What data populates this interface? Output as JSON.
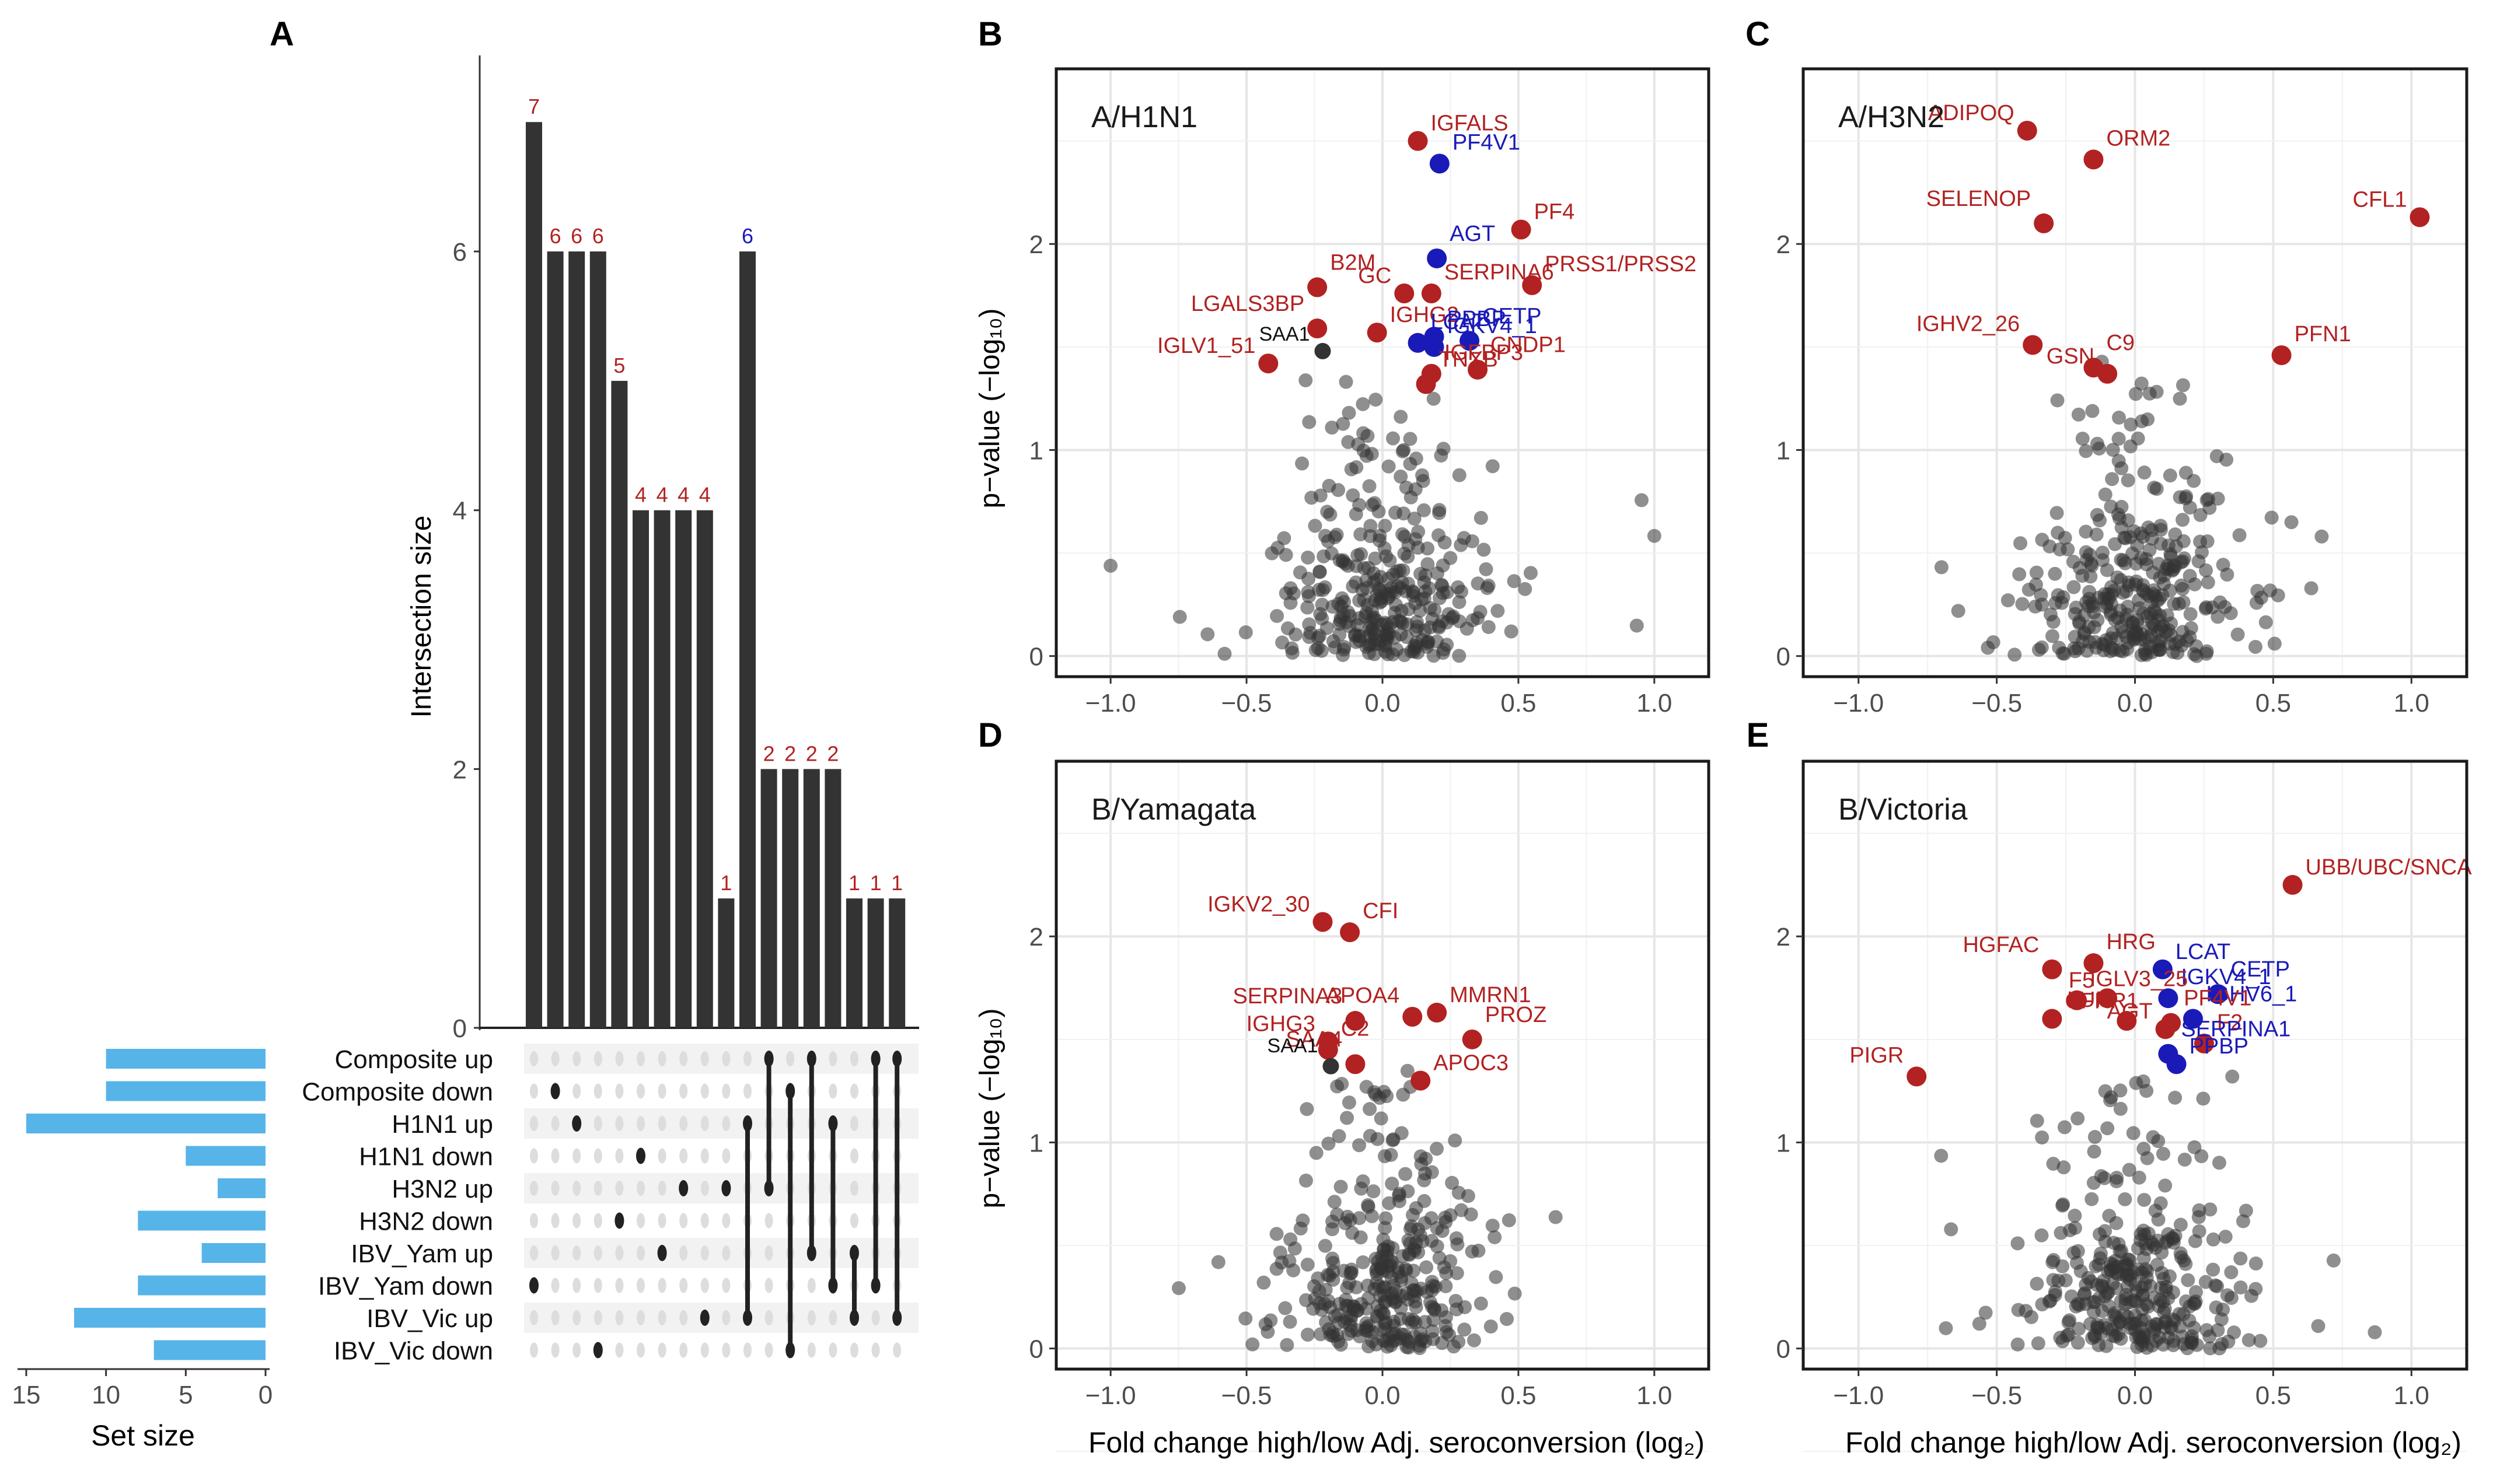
{
  "colors": {
    "bar": "#333333",
    "set_bar": "#56b4e9",
    "up": "#b22222",
    "down": "#1a1ab8",
    "grey": "#333333",
    "grid": "#e6e6e6",
    "panel_border": "#1a1a1a",
    "matrix_bg": "#f2f2f2",
    "dot_off": "#dddddd",
    "dot_on": "#222222"
  },
  "chart_data": [
    {
      "panel": "A",
      "type": "bar",
      "title": "",
      "ylabel": "Intersection size",
      "ylim": [
        0,
        7.5
      ],
      "yticks": [
        0,
        2,
        4,
        6
      ],
      "values": [
        7,
        6,
        6,
        6,
        5,
        4,
        4,
        4,
        4,
        1,
        6,
        2,
        2,
        2,
        2,
        1,
        1,
        1
      ],
      "label_colors": [
        "up",
        "up",
        "up",
        "up",
        "up",
        "up",
        "up",
        "up",
        "up",
        "up",
        "down",
        "up",
        "up",
        "up",
        "up",
        "up",
        "up",
        "up"
      ],
      "sets": [
        "Composite up",
        "Composite down",
        "H1N1 up",
        "H1N1 down",
        "H3N2 up",
        "H3N2 down",
        "IBV_Yam up",
        "IBV_Yam down",
        "IBV_Vic up",
        "IBV_Vic down"
      ],
      "set_sizes": [
        10,
        10,
        15,
        5,
        3,
        8,
        4,
        8,
        12,
        7
      ],
      "set_size_label": "Set size",
      "set_size_ticks": [
        15,
        10,
        5,
        0
      ],
      "memberships": [
        [
          7
        ],
        [
          1
        ],
        [
          2
        ],
        [
          9
        ],
        [
          5
        ],
        [
          3
        ],
        [
          6
        ],
        [
          4
        ],
        [
          8
        ],
        [
          4
        ],
        [
          2,
          8
        ],
        [
          0,
          4
        ],
        [
          1,
          9
        ],
        [
          0,
          6
        ],
        [
          2,
          7
        ],
        [
          6,
          8
        ],
        [
          0,
          7
        ],
        [
          0,
          8
        ]
      ]
    },
    {
      "panel": "B",
      "type": "scatter",
      "title": "A/H1N1",
      "xlabel": "Fold change high/low Adj. seroconversion (log₂)",
      "ylabel": "p−value (−log₁₀)",
      "xlim": [
        -1.2,
        1.2
      ],
      "ylim": [
        -0.1,
        2.85
      ],
      "xticks": [
        -1.0,
        -0.5,
        0.0,
        0.5,
        1.0
      ],
      "yticks": [
        0,
        1,
        2
      ],
      "labeled": [
        {
          "label": "IGFALS",
          "x": 0.13,
          "y": 2.5,
          "dir": "up"
        },
        {
          "label": "PF4V1",
          "x": 0.21,
          "y": 2.39,
          "dir": "down"
        },
        {
          "label": "AGT",
          "x": 0.2,
          "y": 1.93,
          "dir": "down"
        },
        {
          "label": "PF4",
          "x": 0.51,
          "y": 2.07,
          "dir": "up"
        },
        {
          "label": "PRSS1/PRSS2",
          "x": 0.55,
          "y": 1.8,
          "dir": "up"
        },
        {
          "label": "B2M",
          "x": -0.24,
          "y": 1.79,
          "dir": "up"
        },
        {
          "label": "GC",
          "x": 0.08,
          "y": 1.76,
          "dir": "up"
        },
        {
          "label": "SERPINA6",
          "x": 0.18,
          "y": 1.76,
          "dir": "up"
        },
        {
          "label": "LGALS3BP",
          "x": -0.24,
          "y": 1.59,
          "dir": "up"
        },
        {
          "label": "IGHG2",
          "x": -0.02,
          "y": 1.57,
          "dir": "up"
        },
        {
          "label": "LCAT",
          "x": 0.13,
          "y": 1.52,
          "dir": "down"
        },
        {
          "label": "CETP",
          "x": 0.32,
          "y": 1.53,
          "dir": "down"
        },
        {
          "label": "IGLV1_51",
          "x": -0.42,
          "y": 1.42,
          "dir": "up"
        },
        {
          "label": "IGKV4_1",
          "x": 0.19,
          "y": 1.5,
          "dir": "down"
        },
        {
          "label": "CNDP1",
          "x": 0.35,
          "y": 1.39,
          "dir": "up"
        },
        {
          "label": "PPBP",
          "x": 0.19,
          "y": 1.55,
          "dir": "down"
        },
        {
          "label": "IGFBP3",
          "x": 0.18,
          "y": 1.37,
          "dir": "up"
        },
        {
          "label": "TNXB",
          "x": 0.16,
          "y": 1.32,
          "dir": "up"
        },
        {
          "label": "SAA1",
          "x": -0.22,
          "y": 1.48,
          "dir": "grey"
        }
      ]
    },
    {
      "panel": "C",
      "type": "scatter",
      "title": "A/H3N2",
      "xlabel": "",
      "ylabel": "",
      "xlim": [
        -1.2,
        1.2
      ],
      "ylim": [
        -0.1,
        2.85
      ],
      "xticks": [
        -1.0,
        -0.5,
        0.0,
        0.5,
        1.0
      ],
      "yticks": [
        0,
        1,
        2
      ],
      "labeled": [
        {
          "label": "ADIPOQ",
          "x": -0.39,
          "y": 2.55,
          "dir": "up"
        },
        {
          "label": "ORM2",
          "x": -0.15,
          "y": 2.41,
          "dir": "up"
        },
        {
          "label": "SELENOP",
          "x": -0.33,
          "y": 2.1,
          "dir": "up"
        },
        {
          "label": "CFL1",
          "x": 1.03,
          "y": 2.13,
          "dir": "up"
        },
        {
          "label": "IGHV2_26",
          "x": -0.37,
          "y": 1.51,
          "dir": "up"
        },
        {
          "label": "C9",
          "x": -0.15,
          "y": 1.4,
          "dir": "up"
        },
        {
          "label": "GSN",
          "x": -0.1,
          "y": 1.37,
          "dir": "up"
        },
        {
          "label": "PFN1",
          "x": 0.53,
          "y": 1.46,
          "dir": "up"
        }
      ]
    },
    {
      "panel": "D",
      "type": "scatter",
      "title": "B/Yamagata",
      "xlabel": "Fold change high/low Adj. seroconversion (log₂)",
      "ylabel": "p−value (−log₁₀)",
      "xlim": [
        -1.2,
        1.2
      ],
      "ylim": [
        -0.1,
        2.85
      ],
      "xticks": [
        -1.0,
        -0.5,
        0.0,
        0.5,
        1.0
      ],
      "yticks": [
        0,
        1,
        2
      ],
      "labeled": [
        {
          "label": "IGKV2_30",
          "x": -0.22,
          "y": 2.07,
          "dir": "up"
        },
        {
          "label": "CFI",
          "x": -0.12,
          "y": 2.02,
          "dir": "up"
        },
        {
          "label": "SERPINA3",
          "x": -0.1,
          "y": 1.59,
          "dir": "up"
        },
        {
          "label": "MMRN1",
          "x": 0.2,
          "y": 1.63,
          "dir": "up"
        },
        {
          "label": "APOA4",
          "x": 0.11,
          "y": 1.61,
          "dir": "up"
        },
        {
          "label": "PROZ",
          "x": 0.33,
          "y": 1.5,
          "dir": "up"
        },
        {
          "label": "IGHG3",
          "x": -0.2,
          "y": 1.49,
          "dir": "up"
        },
        {
          "label": "C2",
          "x": -0.2,
          "y": 1.45,
          "dir": "up"
        },
        {
          "label": "SAA4",
          "x": -0.1,
          "y": 1.38,
          "dir": "up"
        },
        {
          "label": "APOC3",
          "x": 0.14,
          "y": 1.3,
          "dir": "up"
        },
        {
          "label": "SAA1",
          "x": -0.19,
          "y": 1.37,
          "dir": "grey"
        }
      ]
    },
    {
      "panel": "E",
      "type": "scatter",
      "title": "B/Victoria",
      "xlabel": "Fold change high/low Adj. seroconversion (log₂)",
      "ylabel": "",
      "xlim": [
        -1.2,
        1.2
      ],
      "ylim": [
        -0.1,
        2.85
      ],
      "xticks": [
        -1.0,
        -0.5,
        0.0,
        0.5,
        1.0
      ],
      "yticks": [
        0,
        1,
        2
      ],
      "labeled": [
        {
          "label": "UBB/UBC/SNCA",
          "x": 0.57,
          "y": 2.25,
          "dir": "up"
        },
        {
          "label": "HRG",
          "x": -0.15,
          "y": 1.87,
          "dir": "up"
        },
        {
          "label": "HGFAC",
          "x": -0.3,
          "y": 1.84,
          "dir": "up"
        },
        {
          "label": "LCAT",
          "x": 0.1,
          "y": 1.84,
          "dir": "down"
        },
        {
          "label": "IGKV4_1",
          "x": 0.12,
          "y": 1.7,
          "dir": "down"
        },
        {
          "label": "CETP",
          "x": 0.3,
          "y": 1.72,
          "dir": "down"
        },
        {
          "label": "F5",
          "x": -0.1,
          "y": 1.7,
          "dir": "up"
        },
        {
          "label": "IGLV3_25",
          "x": -0.21,
          "y": 1.69,
          "dir": "up"
        },
        {
          "label": "IGHV6_1",
          "x": 0.21,
          "y": 1.6,
          "dir": "down"
        },
        {
          "label": "CFHR1",
          "x": -0.3,
          "y": 1.6,
          "dir": "up"
        },
        {
          "label": "LUM",
          "x": -0.03,
          "y": 1.59,
          "dir": "up"
        },
        {
          "label": "PF4V1",
          "x": 0.13,
          "y": 1.58,
          "dir": "up"
        },
        {
          "label": "AGT",
          "x": 0.11,
          "y": 1.55,
          "dir": "up"
        },
        {
          "label": "F2",
          "x": 0.25,
          "y": 1.48,
          "dir": "up"
        },
        {
          "label": "SERPINA1",
          "x": 0.12,
          "y": 1.43,
          "dir": "down"
        },
        {
          "label": "PPBP",
          "x": 0.15,
          "y": 1.38,
          "dir": "down"
        },
        {
          "label": "PIGR",
          "x": -0.79,
          "y": 1.32,
          "dir": "up"
        }
      ]
    }
  ]
}
